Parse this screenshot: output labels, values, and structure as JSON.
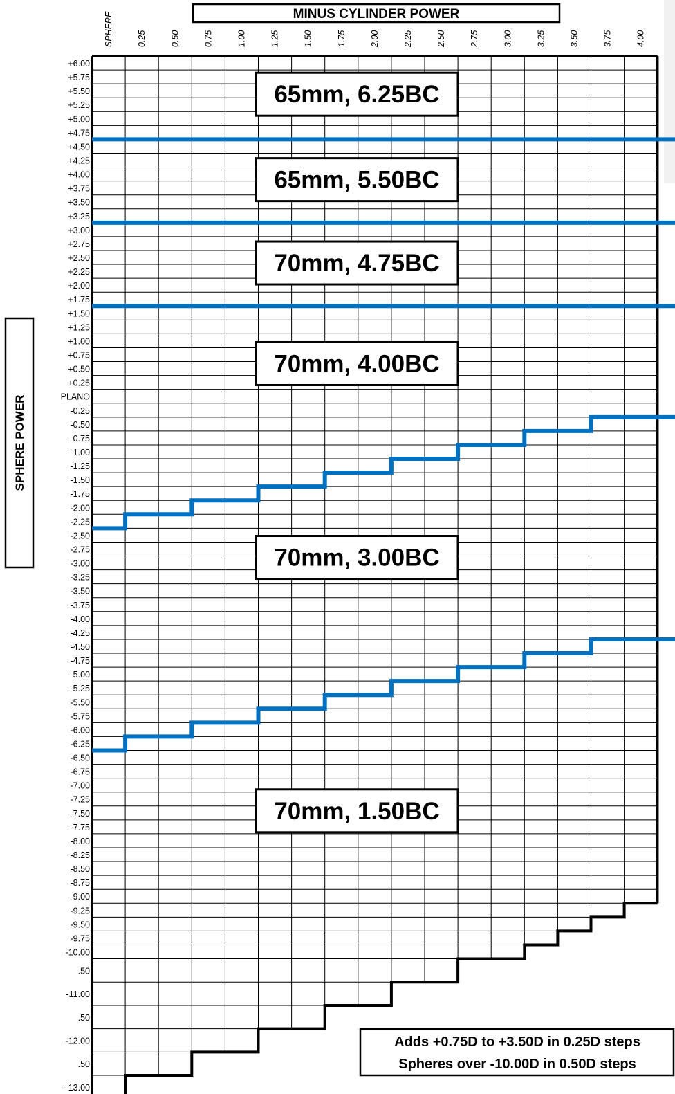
{
  "chart_data": {
    "type": "table",
    "title": "MINUS CYLINDER POWER",
    "ylabel": "SPHERE POWER",
    "columns": [
      "SPHERE",
      "0.25",
      "0.50",
      "0.75",
      "1.00",
      "1.25",
      "1.50",
      "1.75",
      "2.00",
      "2.25",
      "2.50",
      "2.75",
      "3.00",
      "3.25",
      "3.50",
      "3.75",
      "4.00"
    ],
    "rows": [
      "+6.00",
      "+5.75",
      "+5.50",
      "+5.25",
      "+5.00",
      "+4.75",
      "+4.50",
      "+4.25",
      "+4.00",
      "+3.75",
      "+3.50",
      "+3.25",
      "+3.00",
      "+2.75",
      "+2.50",
      "+2.25",
      "+2.00",
      "+1.75",
      "+1.50",
      "+1.25",
      "+1.00",
      "+0.75",
      "+0.50",
      "+0.25",
      "PLANO",
      "-0.25",
      "-0.50",
      "-0.75",
      "-1.00",
      "-1.25",
      "-1.50",
      "-1.75",
      "-2.00",
      "-2.25",
      "-2.50",
      "-2.75",
      "-3.00",
      "-3.25",
      "-3.50",
      "-3.75",
      "-4.00",
      "-4.25",
      "-4.50",
      "-4.75",
      "-5.00",
      "-5.25",
      "-5.50",
      "-5.75",
      "-6.00",
      "-6.25",
      "-6.50",
      "-6.75",
      "-7.00",
      "-7.25",
      "-7.50",
      "-7.75",
      "-8.00",
      "-8.25",
      "-8.50",
      "-8.75",
      "-9.00",
      "-9.25",
      "-9.50",
      "-9.75",
      "-10.00",
      ".50",
      "-11.00",
      ".50",
      "-12.00",
      ".50",
      "-13.00"
    ],
    "zones": [
      {
        "label": "65mm, 6.25BC",
        "color": "#000000"
      },
      {
        "label": "65mm, 5.50BC",
        "color": "#000000"
      },
      {
        "label": "70mm, 4.75BC",
        "color": "#000000"
      },
      {
        "label": "70mm, 4.00BC",
        "color": "#000000"
      },
      {
        "label": "70mm, 3.00BC",
        "color": "#000000"
      },
      {
        "label": "70mm, 1.50BC",
        "color": "#000000"
      }
    ],
    "boundaries": {
      "flat": [
        {
          "between": [
            "+4.75",
            "+4.50"
          ]
        },
        {
          "between": [
            "+3.25",
            "+3.00"
          ]
        },
        {
          "between": [
            "+1.75",
            "+1.50"
          ]
        }
      ],
      "stepped": [
        {
          "description": "4.00BC / 3.00BC boundary: last sphere row in upper zone per column group",
          "steps": [
            {
              "columns": [
                "SPHERE"
              ],
              "last_row": "-2.25"
            },
            {
              "columns": [
                "0.25",
                "0.50"
              ],
              "last_row": "-2.00"
            },
            {
              "columns": [
                "0.75",
                "1.00"
              ],
              "last_row": "-1.75"
            },
            {
              "columns": [
                "1.25",
                "1.50"
              ],
              "last_row": "-1.50"
            },
            {
              "columns": [
                "1.75",
                "2.00"
              ],
              "last_row": "-1.25"
            },
            {
              "columns": [
                "2.25",
                "2.50"
              ],
              "last_row": "-1.00"
            },
            {
              "columns": [
                "2.75",
                "3.00"
              ],
              "last_row": "-0.75"
            },
            {
              "columns": [
                "3.25",
                "3.50"
              ],
              "last_row": "-0.50"
            },
            {
              "columns": [
                "3.75",
                "4.00"
              ],
              "last_row": "-0.25"
            }
          ]
        },
        {
          "description": "3.00BC / 1.50BC boundary",
          "steps": [
            {
              "columns": [
                "SPHERE"
              ],
              "last_row": "-6.25"
            },
            {
              "columns": [
                "0.25",
                "0.50"
              ],
              "last_row": "-6.00"
            },
            {
              "columns": [
                "0.75",
                "1.00"
              ],
              "last_row": "-5.75"
            },
            {
              "columns": [
                "1.25",
                "1.50"
              ],
              "last_row": "-5.50"
            },
            {
              "columns": [
                "1.75",
                "2.00"
              ],
              "last_row": "-5.25"
            },
            {
              "columns": [
                "2.25",
                "2.50"
              ],
              "last_row": "-5.00"
            },
            {
              "columns": [
                "2.75",
                "3.00"
              ],
              "last_row": "-4.75"
            },
            {
              "columns": [
                "3.25",
                "3.50"
              ],
              "last_row": "-4.50"
            },
            {
              "columns": [
                "3.75",
                "4.00"
              ],
              "last_row": "-4.25"
            }
          ]
        }
      ],
      "color": "#0070c0"
    },
    "availability_limit": [
      {
        "column": "SPHERE",
        "last_row": "-13.00"
      },
      {
        "column": "0.25",
        "last_row": ".50"
      },
      {
        "column": "0.50",
        "last_row": ".50"
      },
      {
        "column": "0.75",
        "last_row": "-12.00"
      },
      {
        "column": "1.00",
        "last_row": "-12.00"
      },
      {
        "column": "1.25",
        "last_row": ".50"
      },
      {
        "column": "1.50",
        "last_row": ".50"
      },
      {
        "column": "1.75",
        "last_row": "-11.00"
      },
      {
        "column": "2.00",
        "last_row": "-11.00"
      },
      {
        "column": "2.25",
        "last_row": ".50"
      },
      {
        "column": "2.50",
        "last_row": ".50"
      },
      {
        "column": "2.75",
        "last_row": "-10.00"
      },
      {
        "column": "3.00",
        "last_row": "-10.00"
      },
      {
        "column": "3.25",
        "last_row": "-9.75"
      },
      {
        "column": "3.50",
        "last_row": "-9.50"
      },
      {
        "column": "3.75",
        "last_row": "-9.25"
      },
      {
        "column": "4.00",
        "last_row": "-9.00"
      }
    ],
    "notes": [
      "Adds +0.75D to +3.50D in 0.25D steps",
      "Spheres over -10.00D in 0.50D steps"
    ],
    "grid": true
  }
}
